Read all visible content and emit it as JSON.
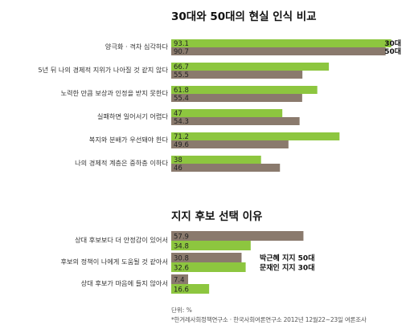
{
  "notes": {
    "unit": "단위: %",
    "source": "*한겨레사회정책연구소 · 한국사회여론연구소 2012년 12월22~23일 여론조사"
  },
  "chart_data": [
    {
      "type": "bar",
      "orientation": "horizontal",
      "title": "30대와 50대의 현실 인식 비교",
      "categories": [
        "양극화 · 격차 심각하다",
        "5년 뒤 나의 경제적 지위가 나아질 것 같지 않다",
        "노력한 만큼 보상과 인정을 받지 못한다",
        "실패하면 일어서기 어렵다",
        "복지와 분배가 우선돼야 한다",
        "나의 경제적 계층은 중하층 이하다"
      ],
      "series": [
        {
          "name": "30대",
          "color": "#8dc63f",
          "values": [
            93.1,
            66.7,
            61.8,
            47,
            71.2,
            38
          ]
        },
        {
          "name": "50대",
          "color": "#8a7a6d",
          "values": [
            90.7,
            55.5,
            55.4,
            54.3,
            49.6,
            46
          ]
        }
      ],
      "data_labels": [
        [
          "93.1",
          "66.7",
          "61.8",
          "47",
          "71.2",
          "38"
        ],
        [
          "90.7",
          "55.5",
          "55.4",
          "54.3",
          "49.6",
          "46"
        ]
      ],
      "xlim": [
        0,
        100
      ],
      "grid": false,
      "legend_position": "inside-right"
    },
    {
      "type": "bar",
      "orientation": "horizontal",
      "title": "지지 후보 선택 이유",
      "categories": [
        "상대 후보보다 더 안정감이 있어서",
        "후보의 정책이 나에게 도움될 것 같아서",
        "상대 후보가 마음에 들지 않아서"
      ],
      "series": [
        {
          "name": "박근혜 지지 50대",
          "color": "#8a7a6d",
          "values": [
            57.9,
            30.8,
            7.4
          ]
        },
        {
          "name": "문재인 지지 30대",
          "color": "#8dc63f",
          "values": [
            34.8,
            32.6,
            16.6
          ]
        }
      ],
      "data_labels": [
        [
          "57.9",
          "30.8",
          "7.4"
        ],
        [
          "34.8",
          "32.6",
          "16.6"
        ]
      ],
      "xlim": [
        0,
        100
      ],
      "grid": false,
      "legend_position": "right"
    }
  ]
}
